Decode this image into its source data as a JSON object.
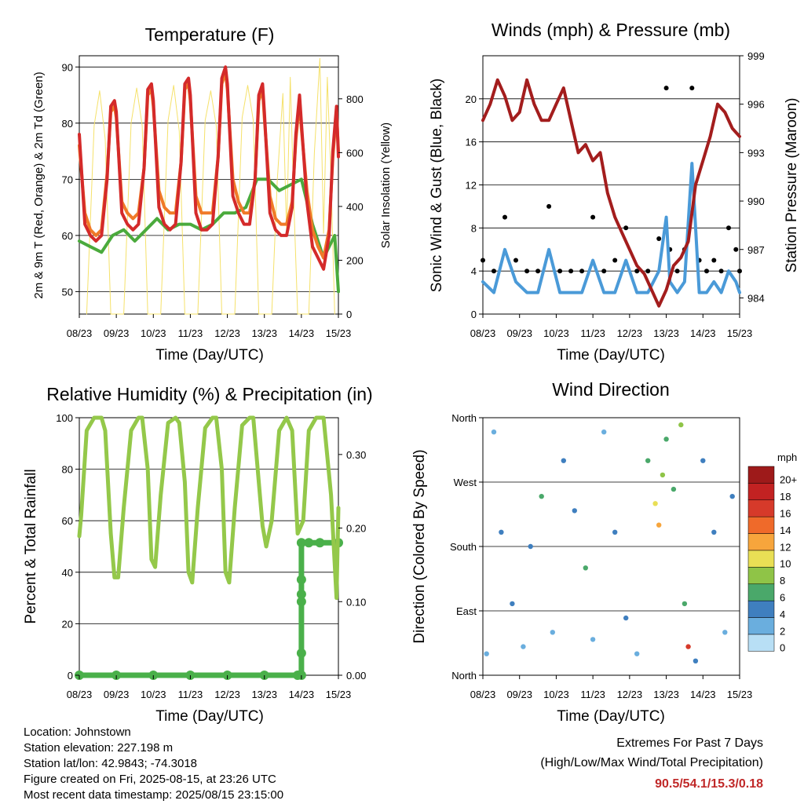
{
  "colors": {
    "temp2m": "#d42a2a",
    "temp9m": "#f07a28",
    "dewpoint": "#4aaa3c",
    "solar": "#f5e16a",
    "wind": "#4a9ad8",
    "gust": "#000000",
    "pressure": "#a31d1d",
    "rh": "#94c84a",
    "precip": "#4ab04a",
    "extremes_value": "#c02828"
  },
  "chart_data": [
    {
      "type": "line",
      "title": "Temperature (F)",
      "xlabel": "Time (Day/UTC)",
      "ylabel": "2m & 9m T (Red, Orange) & 2m Td (Green)",
      "ylabel_right": "Solar Insolation (Yellow)",
      "xticks": [
        "08/23",
        "09/23",
        "10/23",
        "11/23",
        "12/23",
        "13/23",
        "14/23",
        "15/23"
      ],
      "xlim": [
        0,
        7
      ],
      "ylim": [
        46,
        92
      ],
      "yticks": [
        50,
        60,
        70,
        80,
        90
      ],
      "ylim_right": [
        0,
        960
      ],
      "yticks_right": [
        0,
        200,
        400,
        600,
        800
      ],
      "grid": true,
      "series": [
        {
          "key": "temp2m",
          "x": [
            0,
            0.15,
            0.3,
            0.45,
            0.6,
            0.75,
            0.85,
            0.95,
            1.0,
            1.15,
            1.3,
            1.45,
            1.6,
            1.75,
            1.85,
            1.95,
            2.0,
            2.15,
            2.3,
            2.45,
            2.6,
            2.75,
            2.85,
            2.95,
            3.0,
            3.15,
            3.3,
            3.45,
            3.6,
            3.75,
            3.85,
            3.95,
            4.0,
            4.15,
            4.3,
            4.45,
            4.6,
            4.75,
            4.85,
            4.95,
            5.0,
            5.15,
            5.3,
            5.45,
            5.6,
            5.75,
            5.85,
            5.95,
            6.0,
            6.15,
            6.3,
            6.45,
            6.6,
            6.75,
            6.85,
            6.95,
            7.0
          ],
          "y": [
            78,
            62,
            60,
            59,
            60,
            70,
            83,
            84,
            82,
            64,
            62,
            61,
            62,
            72,
            86,
            87,
            84,
            65,
            62,
            61,
            62,
            73,
            87,
            88,
            85,
            64,
            61,
            61,
            62,
            74,
            88,
            90,
            87,
            67,
            64,
            62,
            62,
            70,
            85,
            87,
            82,
            64,
            61,
            60,
            60,
            65,
            78,
            85,
            80,
            66,
            58,
            56,
            54,
            60,
            75,
            83,
            74
          ]
        },
        {
          "key": "temp9m",
          "x": [
            0,
            0.15,
            0.3,
            0.45,
            0.6,
            0.75,
            0.85,
            0.95,
            1.0,
            1.15,
            1.3,
            1.45,
            1.6,
            1.75,
            1.85,
            1.95,
            2.0,
            2.15,
            2.3,
            2.45,
            2.6,
            2.75,
            2.85,
            2.95,
            3.0,
            3.15,
            3.3,
            3.45,
            3.6,
            3.75,
            3.85,
            3.95,
            4.0,
            4.15,
            4.3,
            4.45,
            4.6,
            4.75,
            4.85,
            4.95,
            5.0,
            5.15,
            5.3,
            5.45,
            5.6,
            5.75,
            5.85,
            5.95,
            6.0,
            6.15,
            6.3,
            6.45,
            6.6,
            6.75,
            6.85,
            6.95,
            7.0
          ],
          "y": [
            76,
            64,
            61,
            60,
            61,
            71,
            82,
            83,
            81,
            66,
            64,
            63,
            64,
            72,
            85,
            86,
            83,
            68,
            65,
            64,
            64,
            73,
            86,
            87,
            84,
            67,
            64,
            64,
            64,
            74,
            87,
            89,
            86,
            70,
            66,
            64,
            64,
            70,
            84,
            86,
            81,
            67,
            63,
            62,
            62,
            66,
            77,
            84,
            79,
            68,
            61,
            58,
            56,
            61,
            74,
            82,
            75
          ]
        },
        {
          "key": "dewpoint",
          "x": [
            0,
            0.3,
            0.6,
            0.9,
            1.2,
            1.5,
            1.8,
            2.1,
            2.4,
            2.7,
            3.0,
            3.3,
            3.6,
            3.9,
            4.2,
            4.5,
            4.8,
            5.1,
            5.4,
            5.7,
            6.0,
            6.3,
            6.6,
            6.9,
            7.0
          ],
          "y": [
            59,
            58,
            57,
            60,
            61,
            59,
            61,
            63,
            61,
            62,
            62,
            61,
            62,
            64,
            64,
            65,
            70,
            70,
            68,
            69,
            70,
            62,
            56,
            60,
            50
          ]
        },
        {
          "key": "solar",
          "x": [
            0.2,
            0.4,
            0.55,
            0.7,
            0.85,
            1.2,
            1.4,
            1.55,
            1.7,
            1.85,
            2.2,
            2.4,
            2.55,
            2.7,
            2.85,
            3.2,
            3.4,
            3.55,
            3.7,
            3.85,
            4.2,
            4.4,
            4.55,
            4.7,
            4.85,
            5.2,
            5.35,
            5.5,
            5.6,
            5.7,
            5.8,
            5.9,
            6.2,
            6.35,
            6.5,
            6.6,
            6.7,
            6.8,
            6.9
          ],
          "y": [
            0,
            700,
            830,
            650,
            0,
            0,
            710,
            840,
            700,
            0,
            0,
            720,
            850,
            680,
            0,
            0,
            720,
            830,
            700,
            0,
            0,
            730,
            850,
            720,
            0,
            0,
            500,
            820,
            300,
            880,
            400,
            0,
            0,
            600,
            950,
            300,
            880,
            500,
            0
          ]
        }
      ]
    },
    {
      "type": "line",
      "title": "Winds (mph) & Pressure (mb)",
      "xlabel": "Time (Day/UTC)",
      "ylabel": "Sonic Wind & Gust (Blue, Black)",
      "ylabel_right": "Station Pressure (Maroon)",
      "xticks": [
        "08/23",
        "09/23",
        "10/23",
        "11/23",
        "12/23",
        "13/23",
        "14/23",
        "15/23"
      ],
      "xlim": [
        0,
        7
      ],
      "ylim": [
        0,
        24
      ],
      "yticks": [
        0,
        4,
        8,
        12,
        16,
        20
      ],
      "ylim_right": [
        983,
        999
      ],
      "yticks_right": [
        984,
        987,
        990,
        993,
        996,
        999
      ],
      "grid": true,
      "series": [
        {
          "key": "wind",
          "x": [
            0,
            0.3,
            0.6,
            0.9,
            1.2,
            1.5,
            1.8,
            2.1,
            2.4,
            2.7,
            3.0,
            3.3,
            3.6,
            3.9,
            4.2,
            4.5,
            4.8,
            5.0,
            5.1,
            5.3,
            5.5,
            5.7,
            5.9,
            6.1,
            6.3,
            6.5,
            6.7,
            6.9,
            7.0
          ],
          "y": [
            3,
            2,
            6,
            3,
            2,
            2,
            6,
            2,
            2,
            2,
            5,
            2,
            2,
            5,
            2,
            2,
            4,
            9,
            3,
            2,
            3,
            14,
            2,
            2,
            3,
            2,
            4,
            3,
            2
          ]
        },
        {
          "key": "gust",
          "x": [
            0,
            0.3,
            0.6,
            0.9,
            1.2,
            1.5,
            1.8,
            2.1,
            2.4,
            2.7,
            3.0,
            3.3,
            3.6,
            3.9,
            4.2,
            4.5,
            4.8,
            5.0,
            5.1,
            5.3,
            5.5,
            5.7,
            5.9,
            6.1,
            6.3,
            6.5,
            6.7,
            6.9,
            7.0
          ],
          "y": [
            5,
            4,
            9,
            5,
            4,
            4,
            10,
            4,
            4,
            4,
            9,
            4,
            5,
            8,
            4,
            4,
            7,
            21,
            6,
            4,
            6,
            21,
            5,
            4,
            5,
            4,
            8,
            6,
            4
          ]
        },
        {
          "key": "pressure",
          "x": [
            0,
            0.2,
            0.4,
            0.6,
            0.8,
            1.0,
            1.2,
            1.4,
            1.6,
            1.8,
            2.0,
            2.2,
            2.4,
            2.6,
            2.8,
            3.0,
            3.2,
            3.4,
            3.6,
            3.8,
            4.0,
            4.2,
            4.4,
            4.6,
            4.8,
            5.0,
            5.2,
            5.4,
            5.6,
            5.8,
            6.0,
            6.2,
            6.4,
            6.6,
            6.8,
            7.0
          ],
          "y": [
            995,
            996,
            997.5,
            996.5,
            995,
            995.5,
            997.5,
            996,
            995,
            995,
            996,
            997,
            995,
            993,
            993.5,
            992.5,
            993,
            990.5,
            989,
            988,
            987,
            986,
            985.5,
            984.5,
            983.5,
            984.5,
            986,
            986.5,
            987.5,
            991,
            992.5,
            994,
            996,
            995.5,
            994.5,
            994
          ]
        }
      ]
    },
    {
      "type": "line",
      "title": "Relative Humidity (%) & Precipitation (in)",
      "xlabel": "Time (Day/UTC)",
      "ylabel": "Percent & Total Rainfall",
      "xticks": [
        "08/23",
        "09/23",
        "10/23",
        "11/23",
        "12/23",
        "13/23",
        "14/23",
        "15/23"
      ],
      "xlim": [
        0,
        7
      ],
      "ylim": [
        0,
        100
      ],
      "yticks": [
        0,
        20,
        40,
        60,
        80,
        100
      ],
      "ylim_right": [
        0,
        0.35
      ],
      "yticks_right": [
        "0.00",
        "0.10",
        "0.20",
        "0.30"
      ],
      "grid": true,
      "series": [
        {
          "key": "rh",
          "x": [
            0,
            0.05,
            0.2,
            0.4,
            0.6,
            0.7,
            0.85,
            0.95,
            1.05,
            1.2,
            1.4,
            1.6,
            1.7,
            1.85,
            1.95,
            2.05,
            2.2,
            2.4,
            2.6,
            2.7,
            2.85,
            2.95,
            3.05,
            3.2,
            3.4,
            3.6,
            3.7,
            3.85,
            3.95,
            4.05,
            4.2,
            4.4,
            4.6,
            4.7,
            4.85,
            4.95,
            5.05,
            5.2,
            5.4,
            5.6,
            5.75,
            5.9,
            6.05,
            6.2,
            6.4,
            6.6,
            6.8,
            6.95,
            7.0
          ],
          "y": [
            54,
            62,
            95,
            100,
            100,
            95,
            55,
            38,
            38,
            65,
            95,
            100,
            100,
            80,
            45,
            42,
            70,
            98,
            100,
            98,
            75,
            40,
            36,
            65,
            96,
            100,
            100,
            80,
            40,
            36,
            65,
            97,
            100,
            100,
            75,
            58,
            50,
            60,
            95,
            100,
            95,
            55,
            60,
            95,
            100,
            100,
            70,
            30,
            65
          ]
        },
        {
          "key": "precip",
          "x": [
            0,
            1,
            2,
            3,
            4,
            5,
            5.9,
            6.0,
            6.0,
            6.0,
            6.0,
            6.0,
            6.0,
            6.2,
            6.5,
            7.0
          ],
          "y": [
            0,
            0,
            0,
            0,
            0,
            0,
            0,
            0.0,
            0.03,
            0.1,
            0.11,
            0.13,
            0.18,
            0.18,
            0.18,
            0.18
          ]
        }
      ]
    },
    {
      "type": "scatter",
      "title": "Wind Direction",
      "xlabel": "Time (Day/UTC)",
      "ylabel": "Direction (Colored By Speed)",
      "xticks": [
        "08/23",
        "09/23",
        "10/23",
        "11/23",
        "12/23",
        "13/23",
        "14/23",
        "15/23"
      ],
      "xlim": [
        0,
        7
      ],
      "ylim": [
        0,
        360
      ],
      "yticks": [
        "North",
        "East",
        "South",
        "West",
        "North"
      ],
      "yticks_values": [
        0,
        90,
        180,
        270,
        360
      ],
      "grid": true,
      "legend": {
        "title": "mph",
        "position": "right",
        "levels": [
          "20+",
          "18",
          "16",
          "14",
          "12",
          "10",
          "8",
          "6",
          "4",
          "2",
          "0"
        ],
        "colors": [
          "#9e1a1a",
          "#c22222",
          "#d63a2a",
          "#ef6a2a",
          "#f7a53c",
          "#e9df55",
          "#8fc447",
          "#4aa86a",
          "#3f7fbf",
          "#6aaede",
          "#b8dff5"
        ]
      },
      "samples": [
        {
          "t": 0.1,
          "dir": 30,
          "spd": 2
        },
        {
          "t": 0.3,
          "dir": 340,
          "spd": 1
        },
        {
          "t": 0.5,
          "dir": 200,
          "spd": 3
        },
        {
          "t": 0.8,
          "dir": 100,
          "spd": 3
        },
        {
          "t": 1.1,
          "dir": 40,
          "spd": 2
        },
        {
          "t": 1.3,
          "dir": 180,
          "spd": 4
        },
        {
          "t": 1.6,
          "dir": 250,
          "spd": 6
        },
        {
          "t": 1.9,
          "dir": 60,
          "spd": 2
        },
        {
          "t": 2.2,
          "dir": 300,
          "spd": 3
        },
        {
          "t": 2.5,
          "dir": 230,
          "spd": 4
        },
        {
          "t": 2.8,
          "dir": 150,
          "spd": 5
        },
        {
          "t": 3.0,
          "dir": 50,
          "spd": 2
        },
        {
          "t": 3.3,
          "dir": 340,
          "spd": 2
        },
        {
          "t": 3.6,
          "dir": 200,
          "spd": 4
        },
        {
          "t": 3.9,
          "dir": 80,
          "spd": 3
        },
        {
          "t": 4.2,
          "dir": 30,
          "spd": 2
        },
        {
          "t": 4.5,
          "dir": 300,
          "spd": 6
        },
        {
          "t": 4.7,
          "dir": 240,
          "spd": 10
        },
        {
          "t": 4.8,
          "dir": 210,
          "spd": 12
        },
        {
          "t": 4.9,
          "dir": 280,
          "spd": 8
        },
        {
          "t": 5.0,
          "dir": 330,
          "spd": 5
        },
        {
          "t": 5.2,
          "dir": 260,
          "spd": 5
        },
        {
          "t": 5.4,
          "dir": 350,
          "spd": 7
        },
        {
          "t": 5.5,
          "dir": 100,
          "spd": 5
        },
        {
          "t": 5.6,
          "dir": 40,
          "spd": 15
        },
        {
          "t": 5.8,
          "dir": 20,
          "spd": 4
        },
        {
          "t": 6.0,
          "dir": 300,
          "spd": 4
        },
        {
          "t": 6.3,
          "dir": 200,
          "spd": 3
        },
        {
          "t": 6.6,
          "dir": 60,
          "spd": 2
        },
        {
          "t": 6.8,
          "dir": 250,
          "spd": 4
        }
      ]
    }
  ],
  "footer": {
    "location": "Location: Johnstown",
    "elevation": "Station elevation: 227.198 m",
    "latlon": "Station lat/lon: 42.9843; -74.3018",
    "created": "Figure created on Fri, 2025-08-15, at 23:26 UTC",
    "recent": "Most recent data timestamp: 2025/08/15 23:15:00",
    "extremes_title": "Extremes For Past 7 Days",
    "extremes_sub": "(High/Low/Max Wind/Total Precipitation)",
    "extremes_values": "90.5/54.1/15.3/0.18"
  }
}
